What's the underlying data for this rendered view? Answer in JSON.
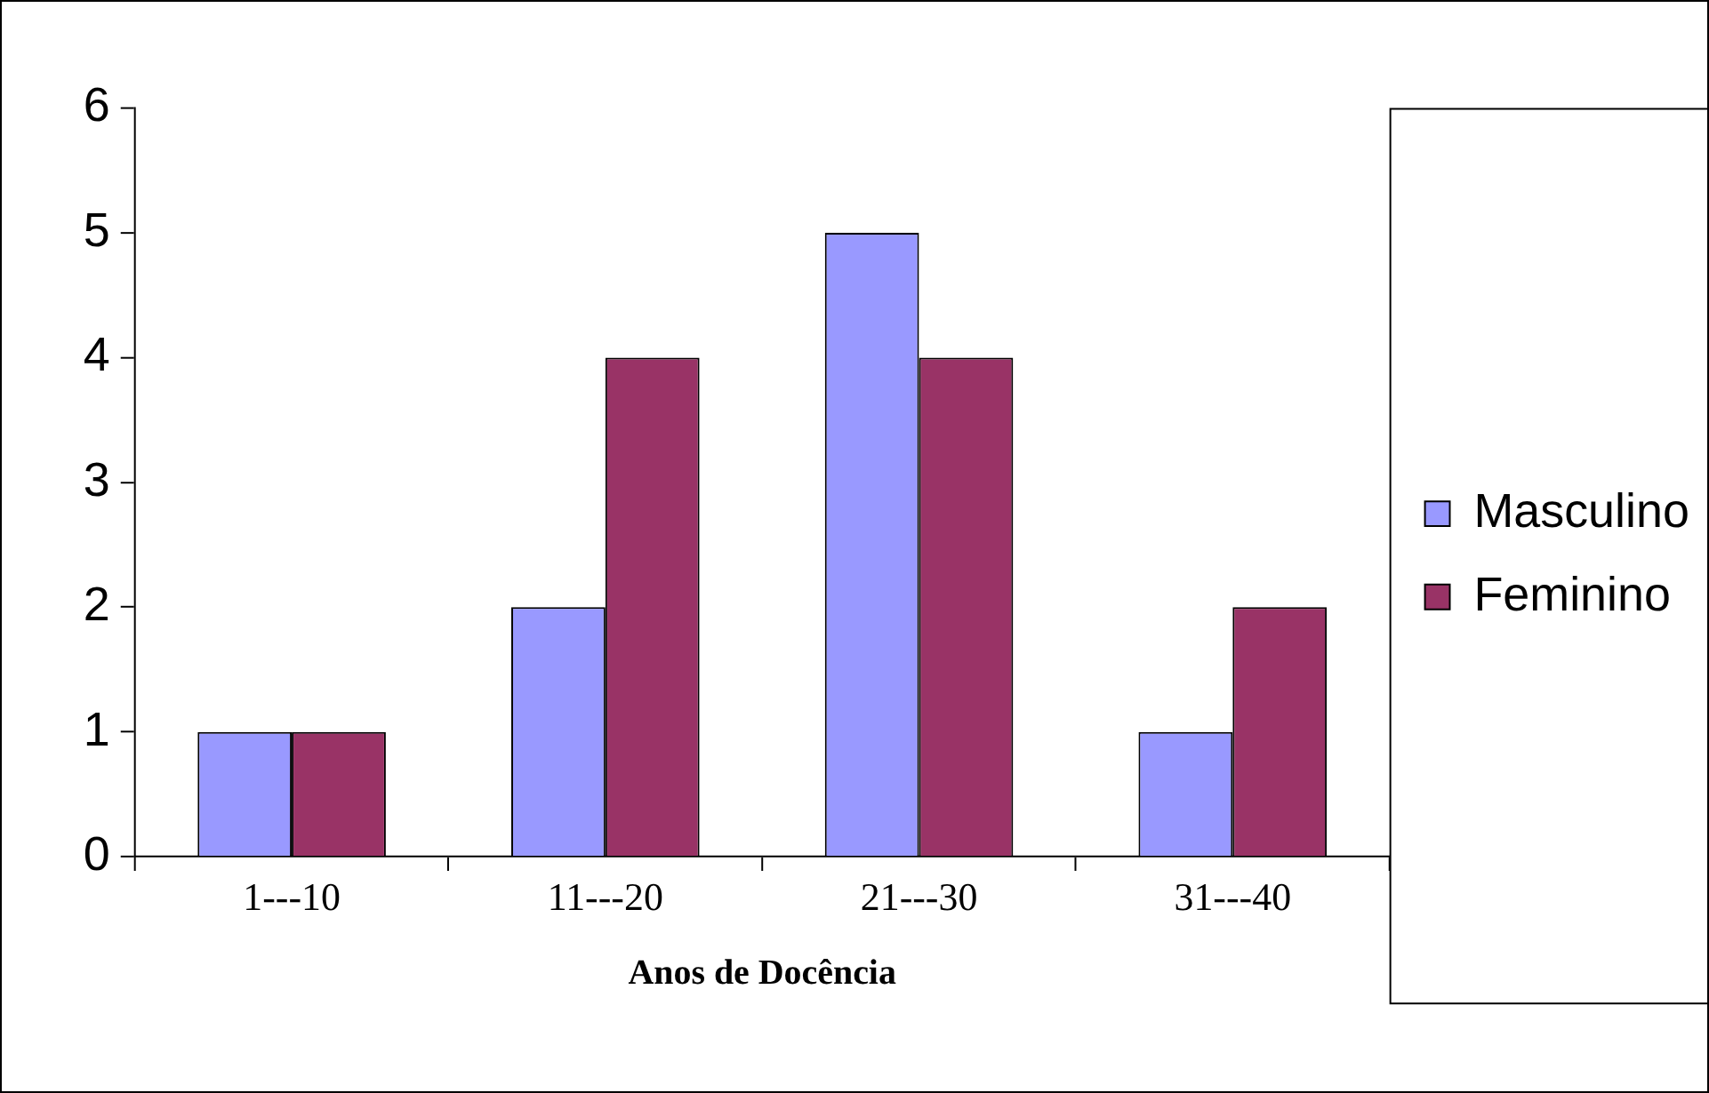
{
  "chart_data": {
    "type": "bar",
    "xlabel": "Anos de Docência",
    "categories": [
      "1---10",
      "11---20",
      "21---30",
      "31---40"
    ],
    "series": [
      {
        "name": "Masculino",
        "color": "#9999ff",
        "values": [
          1,
          2,
          5,
          1
        ]
      },
      {
        "name": "Feminino",
        "color": "#993366",
        "values": [
          1,
          4,
          4,
          2
        ]
      }
    ],
    "ylim": [
      0,
      6
    ],
    "yticks": [
      0,
      1,
      2,
      3,
      4,
      5,
      6
    ],
    "grid": false,
    "legend": "right"
  }
}
